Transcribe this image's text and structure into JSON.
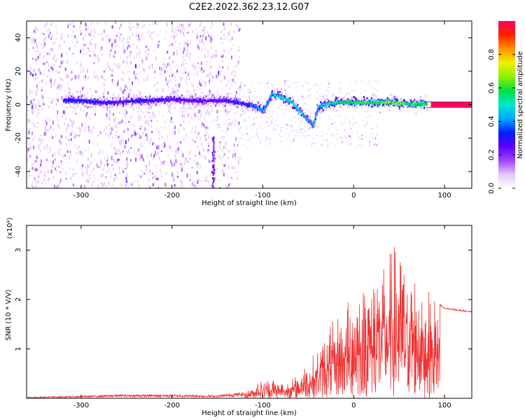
{
  "title": "C2E2.2022.362.23.12.G07",
  "chart_data": [
    {
      "type": "heatmap",
      "name": "spectrogram",
      "xlabel": "Height of straight line (km)",
      "ylabel": "Frequency (Hz)",
      "xlim": [
        -360,
        130
      ],
      "ylim": [
        -50,
        50
      ],
      "x_ticks": [
        -300,
        -200,
        -100,
        0,
        100
      ],
      "y_ticks": [
        -40,
        -20,
        0,
        20,
        40
      ],
      "colorbar": {
        "label": "Normalized spectral amplitude",
        "range": [
          0,
          1
        ],
        "ticks": [
          "0.0",
          "0.2",
          "0.4",
          "0.6",
          "0.8"
        ],
        "colors": [
          "#ffffff",
          "#e2c8f8",
          "#a040ff",
          "#5a00ff",
          "#0020ff",
          "#00a8ff",
          "#00e8d0",
          "#00e040",
          "#90f000",
          "#f0f000",
          "#ff9000",
          "#ff2000",
          "#ff0060"
        ]
      },
      "ridge": [
        {
          "x": -320,
          "y": 3,
          "amp": 0.3
        },
        {
          "x": -300,
          "y": 3,
          "amp": 0.34
        },
        {
          "x": -280,
          "y": 2,
          "amp": 0.3
        },
        {
          "x": -260,
          "y": 2,
          "amp": 0.26
        },
        {
          "x": -240,
          "y": 3,
          "amp": 0.32
        },
        {
          "x": -220,
          "y": 3,
          "amp": 0.3
        },
        {
          "x": -200,
          "y": 4,
          "amp": 0.28
        },
        {
          "x": -180,
          "y": 3,
          "amp": 0.27
        },
        {
          "x": -160,
          "y": 3,
          "amp": 0.25
        },
        {
          "x": -140,
          "y": 3,
          "amp": 0.28
        },
        {
          "x": -120,
          "y": 1,
          "amp": 0.32
        },
        {
          "x": -110,
          "y": 0,
          "amp": 0.38
        },
        {
          "x": -100,
          "y": -3,
          "amp": 0.42
        },
        {
          "x": -90,
          "y": 7,
          "amp": 0.45
        },
        {
          "x": -80,
          "y": 5,
          "amp": 0.5
        },
        {
          "x": -70,
          "y": 3,
          "amp": 0.5
        },
        {
          "x": -60,
          "y": -3,
          "amp": 0.48
        },
        {
          "x": -52,
          "y": -8,
          "amp": 0.45
        },
        {
          "x": -45,
          "y": -12,
          "amp": 0.4
        },
        {
          "x": -40,
          "y": -1,
          "amp": 0.45
        },
        {
          "x": -30,
          "y": 1,
          "amp": 0.5
        },
        {
          "x": -20,
          "y": 2,
          "amp": 0.55
        },
        {
          "x": 0,
          "y": 2,
          "amp": 0.6
        },
        {
          "x": 20,
          "y": 2,
          "amp": 0.62
        },
        {
          "x": 40,
          "y": 2,
          "amp": 0.64
        },
        {
          "x": 60,
          "y": 1,
          "amp": 0.62
        },
        {
          "x": 80,
          "y": 1,
          "amp": 0.6
        },
        {
          "x": 130,
          "y": 0,
          "amp": 1.0
        }
      ]
    },
    {
      "type": "line",
      "name": "snr",
      "xlabel": "Height of straight line (km)",
      "ylabel": "SNR (10 * V/V)",
      "scale_label": "(x10⁴)",
      "color": "#ee3333",
      "xlim": [
        -360,
        130
      ],
      "ylim": [
        0,
        3.5
      ],
      "x_ticks": [
        -300,
        -200,
        -100,
        0,
        100
      ],
      "y_ticks": [
        1,
        2,
        3
      ],
      "envelope": [
        {
          "x": -360,
          "y": 0.02
        },
        {
          "x": -300,
          "y": 0.04
        },
        {
          "x": -260,
          "y": 0.06
        },
        {
          "x": -200,
          "y": 0.06
        },
        {
          "x": -150,
          "y": 0.05
        },
        {
          "x": -120,
          "y": 0.1
        },
        {
          "x": -105,
          "y": 0.35
        },
        {
          "x": -90,
          "y": 0.4
        },
        {
          "x": -75,
          "y": 0.3
        },
        {
          "x": -60,
          "y": 0.5
        },
        {
          "x": -40,
          "y": 1.0
        },
        {
          "x": -25,
          "y": 1.5
        },
        {
          "x": -10,
          "y": 1.9
        },
        {
          "x": 10,
          "y": 2.3
        },
        {
          "x": 30,
          "y": 2.8
        },
        {
          "x": 45,
          "y": 3.1
        },
        {
          "x": 55,
          "y": 2.9
        },
        {
          "x": 70,
          "y": 2.5
        },
        {
          "x": 85,
          "y": 2.15
        },
        {
          "x": 95,
          "y": 1.9
        },
        {
          "x": 100,
          "y": 1.82
        },
        {
          "x": 130,
          "y": 1.75
        }
      ]
    }
  ]
}
